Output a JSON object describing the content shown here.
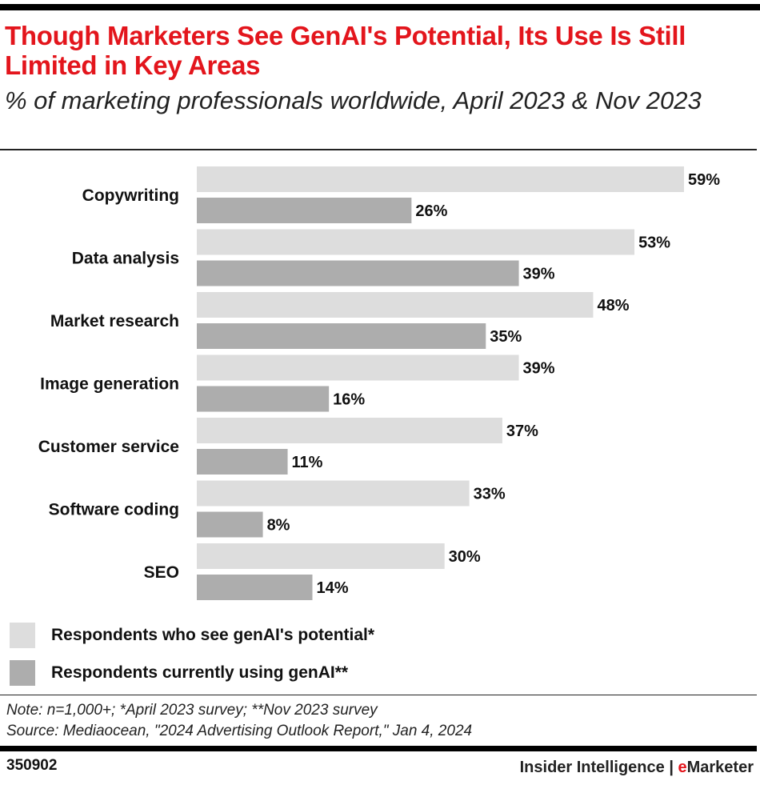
{
  "title": "Though Marketers See GenAI's Potential, Its Use Is Still Limited in Key Areas",
  "subtitle": "% of marketing professionals worldwide, April 2023 & Nov 2023",
  "chart_data": {
    "type": "bar",
    "orientation": "horizontal",
    "categories": [
      "Copywriting",
      "Data analysis",
      "Market research",
      "Image generation",
      "Customer service",
      "Software coding",
      "SEO"
    ],
    "series": [
      {
        "name": "Respondents who see genAI's potential*",
        "values": [
          59,
          53,
          48,
          39,
          37,
          33,
          30
        ],
        "color": "#dddddd"
      },
      {
        "name": "Respondents currently using genAI**",
        "values": [
          26,
          39,
          35,
          16,
          11,
          8,
          14
        ],
        "color": "#adadad"
      }
    ],
    "value_suffix": "%",
    "xlim": [
      0,
      59
    ],
    "grid": false,
    "legend_position": "bottom-left"
  },
  "note": "Note: n=1,000+; *April 2023 survey; **Nov 2023 survey",
  "source": "Source: Mediaocean, \"2024 Advertising Outlook Report,\" Jan 4, 2024",
  "chart_id": "350902",
  "brand": {
    "left": "Insider Intelligence | ",
    "e": "e",
    "right": "Marketer"
  },
  "colors": {
    "title": "#e3151c",
    "accent": "#e3151c"
  }
}
